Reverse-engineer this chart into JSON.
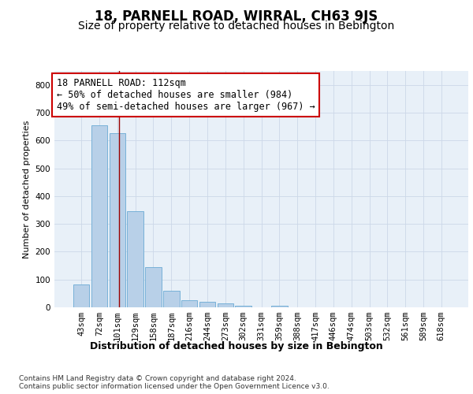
{
  "title": "18, PARNELL ROAD, WIRRAL, CH63 9JS",
  "subtitle": "Size of property relative to detached houses in Bebington",
  "xlabel": "Distribution of detached houses by size in Bebington",
  "ylabel": "Number of detached properties",
  "categories": [
    "43sqm",
    "72sqm",
    "101sqm",
    "129sqm",
    "158sqm",
    "187sqm",
    "216sqm",
    "244sqm",
    "273sqm",
    "302sqm",
    "331sqm",
    "359sqm",
    "388sqm",
    "417sqm",
    "446sqm",
    "474sqm",
    "503sqm",
    "532sqm",
    "561sqm",
    "589sqm",
    "618sqm"
  ],
  "values": [
    82,
    655,
    627,
    347,
    145,
    60,
    25,
    20,
    13,
    6,
    0,
    5,
    0,
    0,
    0,
    0,
    0,
    0,
    0,
    0,
    0
  ],
  "bar_color": "#b8d0e8",
  "bar_edge_color": "#6aaad4",
  "vline_color": "#990000",
  "vline_pos": 2.08,
  "annotation_text": "18 PARNELL ROAD: 112sqm\n← 50% of detached houses are smaller (984)\n49% of semi-detached houses are larger (967) →",
  "annotation_box_color": "white",
  "annotation_box_edge_color": "#cc0000",
  "ylim": [
    0,
    850
  ],
  "yticks": [
    0,
    100,
    200,
    300,
    400,
    500,
    600,
    700,
    800
  ],
  "grid_color": "#ccd8e8",
  "bg_color": "#e8f0f8",
  "footnote": "Contains HM Land Registry data © Crown copyright and database right 2024.\nContains public sector information licensed under the Open Government Licence v3.0.",
  "title_fontsize": 12,
  "subtitle_fontsize": 10,
  "ylabel_fontsize": 8,
  "xlabel_fontsize": 9,
  "tick_fontsize": 7.5,
  "annotation_fontsize": 8.5,
  "footnote_fontsize": 6.5
}
